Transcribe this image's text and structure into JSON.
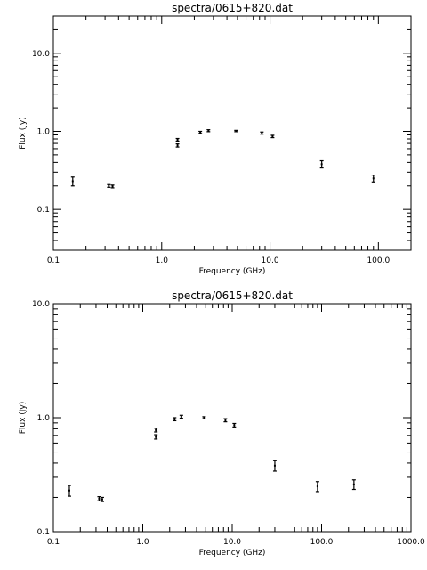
{
  "chart_data": [
    {
      "type": "scatter",
      "title": "spectra/0615+820.dat",
      "xlabel": "Frequency (GHz)",
      "ylabel": "Flux (Jy)",
      "xscale": "log",
      "yscale": "log",
      "xlim": [
        0.1,
        200
      ],
      "ylim": [
        0.03,
        30
      ],
      "xtick_labels": [
        "0.1",
        "1.0",
        "10.0",
        "100.0"
      ],
      "ytick_labels": [
        "0.1",
        "1.0",
        "10.0"
      ],
      "grid": false,
      "points": [
        {
          "x": 0.151,
          "y": 0.23,
          "err": 0.03
        },
        {
          "x": 0.325,
          "y": 0.2,
          "err": 0.008
        },
        {
          "x": 0.352,
          "y": 0.197,
          "err": 0.008
        },
        {
          "x": 1.4,
          "y": 0.78,
          "err": 0.03
        },
        {
          "x": 1.4,
          "y": 0.66,
          "err": 0.03
        },
        {
          "x": 2.27,
          "y": 0.97,
          "err": 0.03
        },
        {
          "x": 2.7,
          "y": 1.02,
          "err": 0.03
        },
        {
          "x": 4.85,
          "y": 1.01,
          "err": 0.02
        },
        {
          "x": 8.4,
          "y": 0.95,
          "err": 0.03
        },
        {
          "x": 10.55,
          "y": 0.86,
          "err": 0.03
        },
        {
          "x": 30.0,
          "y": 0.38,
          "err": 0.04
        },
        {
          "x": 90.0,
          "y": 0.25,
          "err": 0.025
        }
      ]
    },
    {
      "type": "scatter",
      "title": "spectra/0615+820.dat",
      "xlabel": "Frequency (GHz)",
      "ylabel": "Flux (Jy)",
      "xscale": "log",
      "yscale": "log",
      "xlim": [
        0.1,
        1000
      ],
      "ylim": [
        0.1,
        10
      ],
      "xtick_labels": [
        "0.1",
        "1.0",
        "10.0",
        "100.0",
        "1000.0"
      ],
      "ytick_labels": [
        "0.1",
        "1.0",
        "10.0"
      ],
      "grid": false,
      "points": [
        {
          "x": 0.151,
          "y": 0.23,
          "err": 0.025
        },
        {
          "x": 0.325,
          "y": 0.195,
          "err": 0.008
        },
        {
          "x": 0.352,
          "y": 0.192,
          "err": 0.008
        },
        {
          "x": 1.4,
          "y": 0.78,
          "err": 0.03
        },
        {
          "x": 1.4,
          "y": 0.68,
          "err": 0.03
        },
        {
          "x": 2.27,
          "y": 0.97,
          "err": 0.03
        },
        {
          "x": 2.7,
          "y": 1.02,
          "err": 0.03
        },
        {
          "x": 4.85,
          "y": 1.0,
          "err": 0.02
        },
        {
          "x": 8.4,
          "y": 0.95,
          "err": 0.03
        },
        {
          "x": 10.55,
          "y": 0.86,
          "err": 0.03
        },
        {
          "x": 30.0,
          "y": 0.38,
          "err": 0.04
        },
        {
          "x": 90.0,
          "y": 0.25,
          "err": 0.025
        },
        {
          "x": 230.0,
          "y": 0.26,
          "err": 0.025
        }
      ]
    }
  ]
}
